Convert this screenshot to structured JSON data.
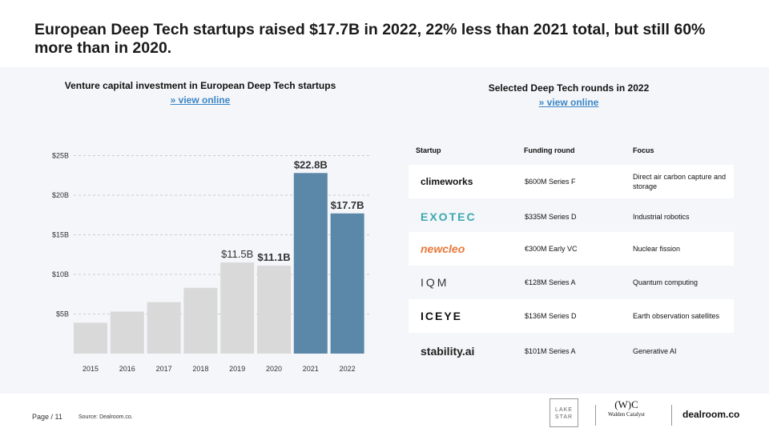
{
  "title": "European Deep Tech startups raised $17.7B in 2022, 22% less than 2021 total, but still 60% more than in 2020.",
  "chart_data": {
    "type": "bar",
    "title": "Venture capital investment in European Deep Tech startups",
    "link": "» view online",
    "categories": [
      "2015",
      "2016",
      "2017",
      "2018",
      "2019",
      "2020",
      "2021",
      "2022"
    ],
    "values": [
      3.9,
      5.3,
      6.5,
      8.3,
      11.5,
      11.1,
      22.8,
      17.7
    ],
    "data_labels": {
      "2019": "$11.5B",
      "2020": "$11.1B",
      "2021": "$22.8B",
      "2022": "$17.7B"
    },
    "highlight": [
      "2021",
      "2022"
    ],
    "yticks": [
      5,
      10,
      15,
      20,
      25
    ],
    "ytick_labels": [
      "$5B",
      "$10B",
      "$15B",
      "$20B",
      "$25B"
    ],
    "ylim": [
      0,
      25
    ],
    "xlabel": "",
    "ylabel": "",
    "grid": true,
    "colors": {
      "base": "#d9d9d9",
      "highlight": "#5b87a9"
    }
  },
  "table": {
    "title": "Selected Deep Tech rounds in 2022",
    "link": "» view online",
    "headers": [
      "Startup",
      "Funding round",
      "Focus"
    ],
    "rows": [
      {
        "startup": "climeworks",
        "round": "$600M Series F",
        "focus": "Direct air carbon capture and storage",
        "color": "#111111"
      },
      {
        "startup": "EXOTEC",
        "round": "$335M Series D",
        "focus": "Industrial robotics",
        "color": "#3aa8b0"
      },
      {
        "startup": "newcleo",
        "round": "€300M Early VC",
        "focus": "Nuclear fission",
        "color": "#e8783a"
      },
      {
        "startup": "IQM",
        "round": "€128M Series A",
        "focus": "Quantum computing",
        "color": "#333333"
      },
      {
        "startup": "ICEYE",
        "round": "$136M Series D",
        "focus": "Earth observation satellites",
        "color": "#111111"
      },
      {
        "startup": "stability.ai",
        "round": "$101M Series A",
        "focus": "Generative AI",
        "color": "#222222"
      }
    ]
  },
  "footer": {
    "page": "Page / 11",
    "source": "Source: Dealroom.co.",
    "logos": [
      "LAKE STAR",
      "(W)C",
      "Walden Catalyst",
      "dealroom.co"
    ]
  }
}
